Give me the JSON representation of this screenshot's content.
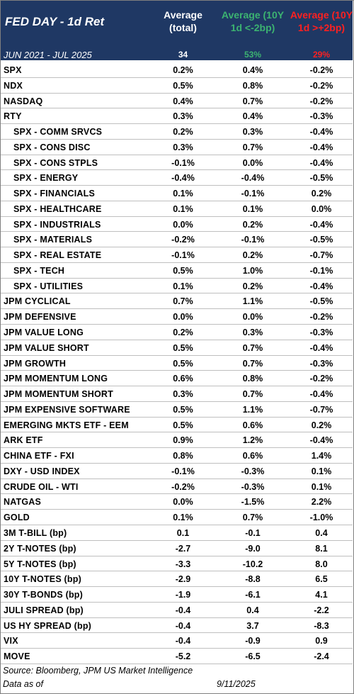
{
  "header": {
    "title": "FED DAY - 1d Ret",
    "col_total": "Average\n(total)",
    "col_down": "Average (10Y\n1d <-2bp)",
    "col_up": "Average (10Y\n1d >+2bp)",
    "period": "JUN 2021 - JUL 2025",
    "total_count": "34",
    "down_pct": "53%",
    "up_pct": "29%"
  },
  "colors": {
    "header_bg": "#1f3864",
    "down_col": "#3cb371",
    "up_col": "#ff2020"
  },
  "rows": [
    {
      "label": "SPX",
      "indent": false,
      "total": "0.2%",
      "down": "0.4%",
      "up": "-0.2%"
    },
    {
      "label": "NDX",
      "indent": false,
      "total": "0.5%",
      "down": "0.8%",
      "up": "-0.2%"
    },
    {
      "label": "NASDAQ",
      "indent": false,
      "total": "0.4%",
      "down": "0.7%",
      "up": "-0.2%"
    },
    {
      "label": "RTY",
      "indent": false,
      "total": "0.3%",
      "down": "0.4%",
      "up": "-0.3%"
    },
    {
      "label": "SPX - COMM SRVCS",
      "indent": true,
      "total": "0.2%",
      "down": "0.3%",
      "up": "-0.4%"
    },
    {
      "label": "SPX - CONS DISC",
      "indent": true,
      "total": "0.3%",
      "down": "0.7%",
      "up": "-0.4%"
    },
    {
      "label": "SPX - CONS STPLS",
      "indent": true,
      "total": "-0.1%",
      "down": "0.0%",
      "up": "-0.4%"
    },
    {
      "label": "SPX - ENERGY",
      "indent": true,
      "total": "-0.4%",
      "down": "-0.4%",
      "up": "-0.5%"
    },
    {
      "label": "SPX - FINANCIALS",
      "indent": true,
      "total": "0.1%",
      "down": "-0.1%",
      "up": "0.2%"
    },
    {
      "label": "SPX - HEALTHCARE",
      "indent": true,
      "total": "0.1%",
      "down": "0.1%",
      "up": "0.0%"
    },
    {
      "label": "SPX - INDUSTRIALS",
      "indent": true,
      "total": "0.0%",
      "down": "0.2%",
      "up": "-0.4%"
    },
    {
      "label": "SPX - MATERIALS",
      "indent": true,
      "total": "-0.2%",
      "down": "-0.1%",
      "up": "-0.5%"
    },
    {
      "label": "SPX - REAL ESTATE",
      "indent": true,
      "total": "-0.1%",
      "down": "0.2%",
      "up": "-0.7%"
    },
    {
      "label": "SPX - TECH",
      "indent": true,
      "total": "0.5%",
      "down": "1.0%",
      "up": "-0.1%"
    },
    {
      "label": "SPX - UTILITIES",
      "indent": true,
      "total": "0.1%",
      "down": "0.2%",
      "up": "-0.4%"
    },
    {
      "label": "JPM CYCLICAL",
      "indent": false,
      "total": "0.7%",
      "down": "1.1%",
      "up": "-0.5%"
    },
    {
      "label": "JPM DEFENSIVE",
      "indent": false,
      "total": "0.0%",
      "down": "0.0%",
      "up": "-0.2%"
    },
    {
      "label": "JPM VALUE LONG",
      "indent": false,
      "total": "0.2%",
      "down": "0.3%",
      "up": "-0.3%"
    },
    {
      "label": "JPM VALUE SHORT",
      "indent": false,
      "total": "0.5%",
      "down": "0.7%",
      "up": "-0.4%"
    },
    {
      "label": "JPM GROWTH",
      "indent": false,
      "total": "0.5%",
      "down": "0.7%",
      "up": "-0.3%"
    },
    {
      "label": "JPM MOMENTUM LONG",
      "indent": false,
      "total": "0.6%",
      "down": "0.8%",
      "up": "-0.2%"
    },
    {
      "label": "JPM MOMENTUM SHORT",
      "indent": false,
      "total": "0.3%",
      "down": "0.7%",
      "up": "-0.4%"
    },
    {
      "label": "JPM EXPENSIVE SOFTWARE",
      "indent": false,
      "total": "0.5%",
      "down": "1.1%",
      "up": "-0.7%"
    },
    {
      "label": "EMERGING MKTS ETF - EEM",
      "indent": false,
      "total": "0.5%",
      "down": "0.6%",
      "up": "0.2%"
    },
    {
      "label": "ARK ETF",
      "indent": false,
      "total": "0.9%",
      "down": "1.2%",
      "up": "-0.4%"
    },
    {
      "label": "CHINA ETF - FXI",
      "indent": false,
      "total": "0.8%",
      "down": "0.6%",
      "up": "1.4%"
    },
    {
      "label": "DXY - USD INDEX",
      "indent": false,
      "total": "-0.1%",
      "down": "-0.3%",
      "up": "0.1%"
    },
    {
      "label": "CRUDE OIL - WTI",
      "indent": false,
      "total": "-0.2%",
      "down": "-0.3%",
      "up": "0.1%"
    },
    {
      "label": "NATGAS",
      "indent": false,
      "total": "0.0%",
      "down": "-1.5%",
      "up": "2.2%"
    },
    {
      "label": "GOLD",
      "indent": false,
      "total": "0.1%",
      "down": "0.7%",
      "up": "-1.0%"
    },
    {
      "label": "3M T-BILL (bp)",
      "indent": false,
      "total": "0.1",
      "down": "-0.1",
      "up": "0.4"
    },
    {
      "label": "2Y T-NOTES (bp)",
      "indent": false,
      "total": "-2.7",
      "down": "-9.0",
      "up": "8.1"
    },
    {
      "label": "5Y T-NOTES (bp)",
      "indent": false,
      "total": "-3.3",
      "down": "-10.2",
      "up": "8.0"
    },
    {
      "label": "10Y T-NOTES (bp)",
      "indent": false,
      "total": "-2.9",
      "down": "-8.8",
      "up": "6.5"
    },
    {
      "label": "30Y T-BONDS (bp)",
      "indent": false,
      "total": "-1.9",
      "down": "-6.1",
      "up": "4.1"
    },
    {
      "label": "JULI SPREAD (bp)",
      "indent": false,
      "total": "-0.4",
      "down": "0.4",
      "up": "-2.2"
    },
    {
      "label": "US HY SPREAD (bp)",
      "indent": false,
      "total": "-0.4",
      "down": "3.7",
      "up": "-8.3"
    },
    {
      "label": "VIX",
      "indent": false,
      "total": "-0.4",
      "down": "-0.9",
      "up": "0.9"
    },
    {
      "label": "MOVE",
      "indent": false,
      "total": "-5.2",
      "down": "-6.5",
      "up": "-2.4"
    }
  ],
  "footer": {
    "source": "Source: Bloomberg, JPM US Market Intelligence",
    "data_as_of": "Data as of",
    "date": "9/11/2025"
  }
}
